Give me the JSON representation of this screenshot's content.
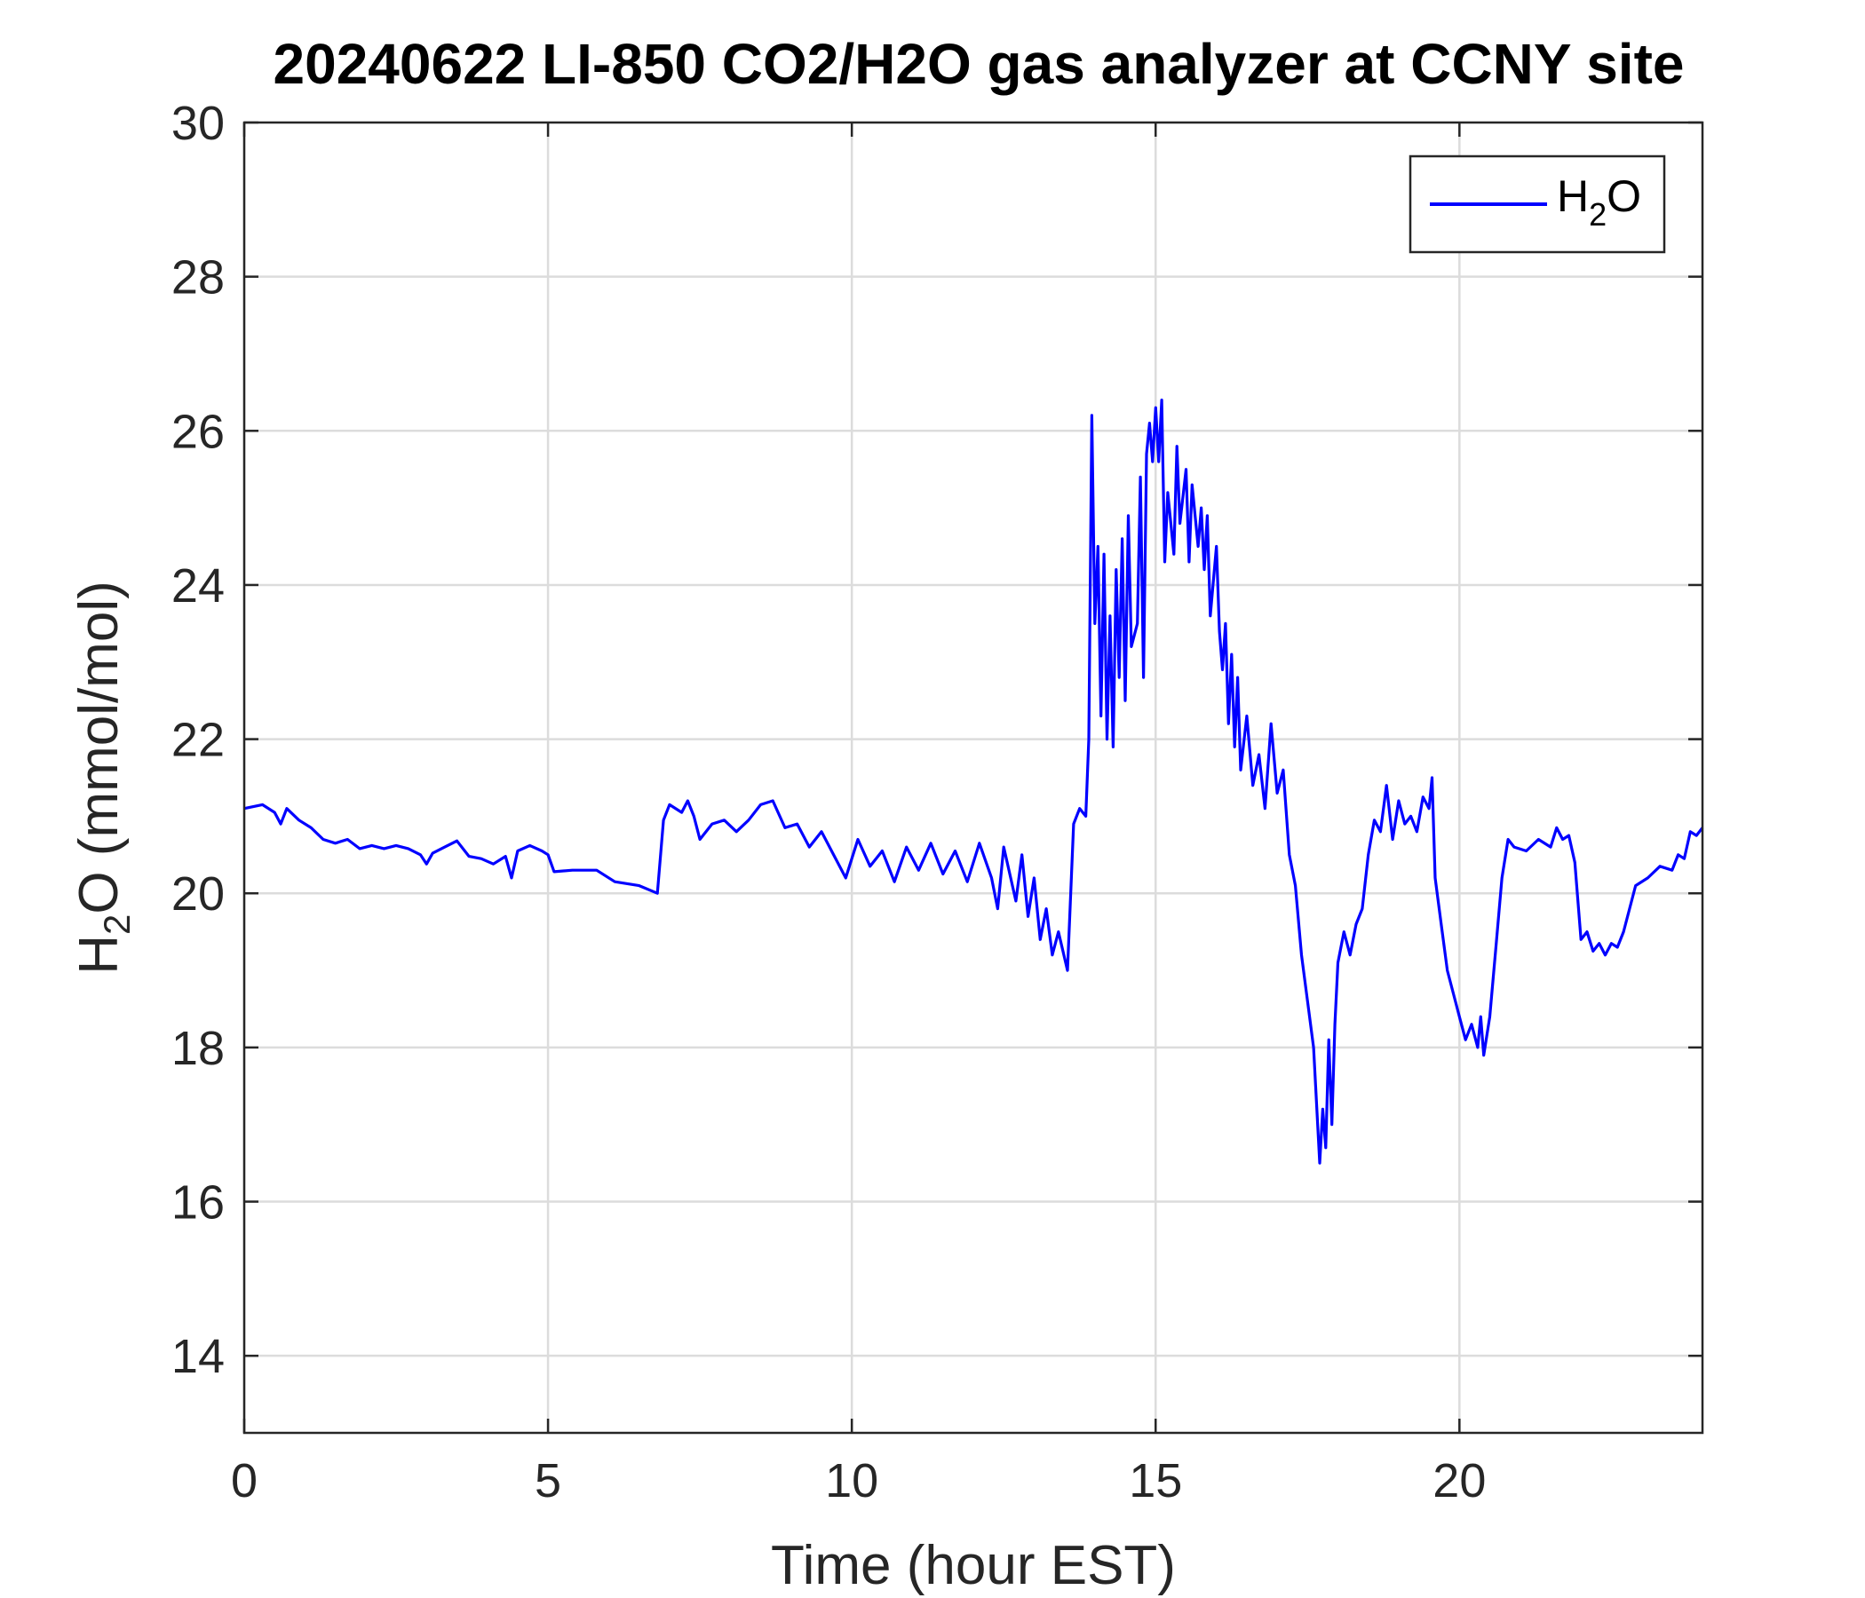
{
  "chart_data": {
    "type": "line",
    "title": "20240622 LI-850 CO2/H2O gas analyzer at CCNY site",
    "xlabel": "Time (hour EST)",
    "ylabel": {
      "pre": "H",
      "sub": "2",
      "post": "O (mmol/mol)"
    },
    "xlim": [
      0,
      24
    ],
    "ylim": [
      13,
      30
    ],
    "xticks": [
      "0",
      "5",
      "10",
      "15",
      "20"
    ],
    "yticks": [
      "14",
      "16",
      "18",
      "20",
      "22",
      "24",
      "26",
      "28",
      "30"
    ],
    "grid": true,
    "legend_position": "top-right",
    "legend": {
      "pre": "H",
      "sub": "2",
      "post": "O"
    },
    "series": [
      {
        "name": "H2O",
        "color": "#0000ff",
        "points": [
          [
            0.0,
            21.1
          ],
          [
            0.3,
            21.15
          ],
          [
            0.5,
            21.05
          ],
          [
            0.6,
            20.9
          ],
          [
            0.7,
            21.1
          ],
          [
            0.9,
            20.95
          ],
          [
            1.1,
            20.85
          ],
          [
            1.3,
            20.7
          ],
          [
            1.5,
            20.65
          ],
          [
            1.7,
            20.7
          ],
          [
            1.9,
            20.58
          ],
          [
            2.1,
            20.62
          ],
          [
            2.3,
            20.58
          ],
          [
            2.5,
            20.62
          ],
          [
            2.7,
            20.58
          ],
          [
            2.9,
            20.5
          ],
          [
            3.0,
            20.38
          ],
          [
            3.1,
            20.52
          ],
          [
            3.3,
            20.6
          ],
          [
            3.5,
            20.68
          ],
          [
            3.7,
            20.48
          ],
          [
            3.9,
            20.45
          ],
          [
            4.1,
            20.38
          ],
          [
            4.3,
            20.48
          ],
          [
            4.4,
            20.2
          ],
          [
            4.5,
            20.55
          ],
          [
            4.7,
            20.62
          ],
          [
            4.9,
            20.55
          ],
          [
            5.0,
            20.5
          ],
          [
            5.1,
            20.28
          ],
          [
            5.4,
            20.3
          ],
          [
            5.8,
            20.3
          ],
          [
            6.1,
            20.15
          ],
          [
            6.5,
            20.1
          ],
          [
            6.8,
            20.0
          ],
          [
            6.9,
            20.95
          ],
          [
            7.0,
            21.15
          ],
          [
            7.2,
            21.05
          ],
          [
            7.3,
            21.2
          ],
          [
            7.4,
            21.0
          ],
          [
            7.5,
            20.7
          ],
          [
            7.7,
            20.9
          ],
          [
            7.9,
            20.95
          ],
          [
            8.1,
            20.8
          ],
          [
            8.3,
            20.95
          ],
          [
            8.5,
            21.15
          ],
          [
            8.7,
            21.2
          ],
          [
            8.9,
            20.85
          ],
          [
            9.1,
            20.9
          ],
          [
            9.3,
            20.6
          ],
          [
            9.5,
            20.8
          ],
          [
            9.7,
            20.5
          ],
          [
            9.9,
            20.2
          ],
          [
            10.1,
            20.7
          ],
          [
            10.3,
            20.35
          ],
          [
            10.5,
            20.55
          ],
          [
            10.7,
            20.15
          ],
          [
            10.9,
            20.6
          ],
          [
            11.1,
            20.3
          ],
          [
            11.3,
            20.65
          ],
          [
            11.5,
            20.25
          ],
          [
            11.7,
            20.55
          ],
          [
            11.9,
            20.15
          ],
          [
            12.1,
            20.65
          ],
          [
            12.3,
            20.2
          ],
          [
            12.4,
            19.8
          ],
          [
            12.5,
            20.6
          ],
          [
            12.7,
            19.9
          ],
          [
            12.8,
            20.5
          ],
          [
            12.9,
            19.7
          ],
          [
            13.0,
            20.2
          ],
          [
            13.1,
            19.4
          ],
          [
            13.2,
            19.8
          ],
          [
            13.3,
            19.2
          ],
          [
            13.4,
            19.5
          ],
          [
            13.55,
            19.0
          ],
          [
            13.65,
            20.9
          ],
          [
            13.75,
            21.1
          ],
          [
            13.85,
            21.0
          ],
          [
            13.9,
            22.0
          ],
          [
            13.95,
            26.2
          ],
          [
            14.0,
            23.5
          ],
          [
            14.05,
            24.5
          ],
          [
            14.1,
            22.3
          ],
          [
            14.15,
            24.4
          ],
          [
            14.2,
            22.0
          ],
          [
            14.25,
            23.6
          ],
          [
            14.3,
            21.9
          ],
          [
            14.35,
            24.2
          ],
          [
            14.4,
            22.8
          ],
          [
            14.45,
            24.6
          ],
          [
            14.5,
            22.5
          ],
          [
            14.55,
            24.9
          ],
          [
            14.6,
            23.2
          ],
          [
            14.7,
            23.5
          ],
          [
            14.75,
            25.4
          ],
          [
            14.8,
            22.8
          ],
          [
            14.85,
            25.7
          ],
          [
            14.9,
            26.1
          ],
          [
            14.95,
            25.6
          ],
          [
            15.0,
            26.3
          ],
          [
            15.05,
            25.6
          ],
          [
            15.1,
            26.4
          ],
          [
            15.15,
            24.3
          ],
          [
            15.2,
            25.2
          ],
          [
            15.3,
            24.4
          ],
          [
            15.35,
            25.8
          ],
          [
            15.4,
            24.8
          ],
          [
            15.5,
            25.5
          ],
          [
            15.55,
            24.3
          ],
          [
            15.6,
            25.3
          ],
          [
            15.7,
            24.5
          ],
          [
            15.75,
            25.0
          ],
          [
            15.8,
            24.2
          ],
          [
            15.85,
            24.9
          ],
          [
            15.9,
            23.6
          ],
          [
            16.0,
            24.5
          ],
          [
            16.05,
            23.4
          ],
          [
            16.1,
            22.9
          ],
          [
            16.15,
            23.5
          ],
          [
            16.2,
            22.2
          ],
          [
            16.25,
            23.1
          ],
          [
            16.3,
            21.9
          ],
          [
            16.35,
            22.8
          ],
          [
            16.4,
            21.6
          ],
          [
            16.5,
            22.3
          ],
          [
            16.6,
            21.4
          ],
          [
            16.7,
            21.8
          ],
          [
            16.8,
            21.1
          ],
          [
            16.9,
            22.2
          ],
          [
            17.0,
            21.3
          ],
          [
            17.1,
            21.6
          ],
          [
            17.2,
            20.5
          ],
          [
            17.3,
            20.1
          ],
          [
            17.4,
            19.2
          ],
          [
            17.5,
            18.6
          ],
          [
            17.6,
            18.0
          ],
          [
            17.7,
            16.5
          ],
          [
            17.75,
            17.2
          ],
          [
            17.8,
            16.7
          ],
          [
            17.85,
            18.1
          ],
          [
            17.9,
            17.0
          ],
          [
            17.95,
            18.3
          ],
          [
            18.0,
            19.1
          ],
          [
            18.1,
            19.5
          ],
          [
            18.2,
            19.2
          ],
          [
            18.3,
            19.6
          ],
          [
            18.4,
            19.8
          ],
          [
            18.5,
            20.5
          ],
          [
            18.6,
            20.95
          ],
          [
            18.7,
            20.8
          ],
          [
            18.8,
            21.4
          ],
          [
            18.9,
            20.7
          ],
          [
            19.0,
            21.2
          ],
          [
            19.1,
            20.9
          ],
          [
            19.2,
            21.0
          ],
          [
            19.3,
            20.8
          ],
          [
            19.4,
            21.25
          ],
          [
            19.5,
            21.1
          ],
          [
            19.55,
            21.5
          ],
          [
            19.6,
            20.2
          ],
          [
            19.7,
            19.6
          ],
          [
            19.8,
            19.0
          ],
          [
            19.9,
            18.7
          ],
          [
            20.0,
            18.4
          ],
          [
            20.1,
            18.1
          ],
          [
            20.2,
            18.3
          ],
          [
            20.3,
            18.0
          ],
          [
            20.35,
            18.4
          ],
          [
            20.4,
            17.9
          ],
          [
            20.5,
            18.4
          ],
          [
            20.6,
            19.3
          ],
          [
            20.7,
            20.2
          ],
          [
            20.8,
            20.7
          ],
          [
            20.9,
            20.6
          ],
          [
            21.1,
            20.55
          ],
          [
            21.3,
            20.7
          ],
          [
            21.5,
            20.6
          ],
          [
            21.6,
            20.85
          ],
          [
            21.7,
            20.7
          ],
          [
            21.8,
            20.75
          ],
          [
            21.9,
            20.4
          ],
          [
            22.0,
            19.4
          ],
          [
            22.1,
            19.5
          ],
          [
            22.2,
            19.25
          ],
          [
            22.3,
            19.35
          ],
          [
            22.4,
            19.2
          ],
          [
            22.5,
            19.35
          ],
          [
            22.6,
            19.3
          ],
          [
            22.7,
            19.5
          ],
          [
            22.8,
            19.8
          ],
          [
            22.9,
            20.1
          ],
          [
            23.1,
            20.2
          ],
          [
            23.3,
            20.35
          ],
          [
            23.5,
            20.3
          ],
          [
            23.6,
            20.5
          ],
          [
            23.7,
            20.45
          ],
          [
            23.8,
            20.8
          ],
          [
            23.9,
            20.75
          ],
          [
            24.0,
            20.85
          ]
        ]
      }
    ]
  }
}
